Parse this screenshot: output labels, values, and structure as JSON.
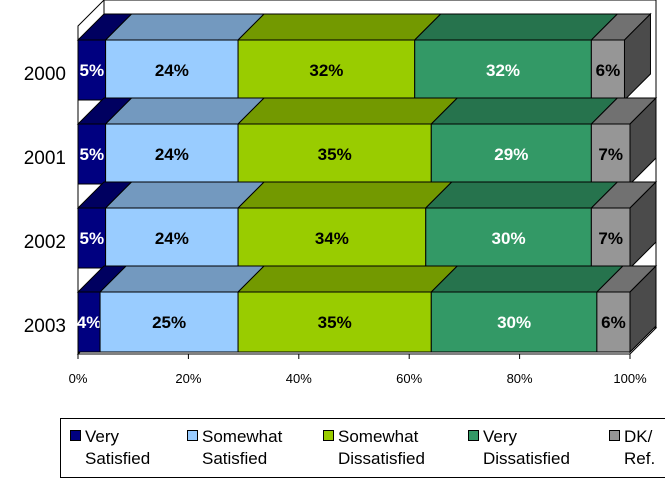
{
  "chart_data": {
    "type": "bar",
    "orientation": "horizontal",
    "stacked": true,
    "three_d": true,
    "categories": [
      "2000",
      "2001",
      "2002",
      "2003"
    ],
    "series": [
      {
        "name": "Very Satisfied",
        "color": "#000080",
        "values": [
          5,
          5,
          5,
          4
        ],
        "labels": [
          "5%",
          "5%",
          "5%",
          "4%"
        ]
      },
      {
        "name": "Somewhat Satisfied",
        "color": "#99ccff",
        "values": [
          24,
          24,
          24,
          25
        ],
        "labels": [
          "24%",
          "24%",
          "24%",
          "25%"
        ]
      },
      {
        "name": "Somewhat Dissatisfied",
        "color": "#99cc00",
        "values": [
          32,
          35,
          34,
          35
        ],
        "labels": [
          "32%",
          "35%",
          "34%",
          "35%"
        ]
      },
      {
        "name": "Very Dissatisfied",
        "color": "#339966",
        "values": [
          32,
          29,
          30,
          30
        ],
        "labels": [
          "32%",
          "29%",
          "30%",
          "30%"
        ]
      },
      {
        "name": "DK/ Ref.",
        "color": "#969696",
        "values": [
          6,
          7,
          7,
          6
        ],
        "labels": [
          "6%",
          "7%",
          "7%",
          "6%"
        ]
      }
    ],
    "xlim": [
      0,
      100
    ],
    "x_ticks": [
      "0%",
      "20%",
      "40%",
      "60%",
      "80%",
      "100%"
    ],
    "grid": false,
    "legend_position": "bottom"
  },
  "legend": [
    {
      "line1": "Very",
      "line2": "Satisfied",
      "color": "#000080"
    },
    {
      "line1": "Somewhat",
      "line2": "Satisfied",
      "color": "#99ccff"
    },
    {
      "line1": "Somewhat",
      "line2": "Dissatisfied",
      "color": "#99cc00"
    },
    {
      "line1": "Very",
      "line2": "Dissatisfied",
      "color": "#339966"
    },
    {
      "line1": "DK/",
      "line2": "Ref.",
      "color": "#969696"
    }
  ]
}
